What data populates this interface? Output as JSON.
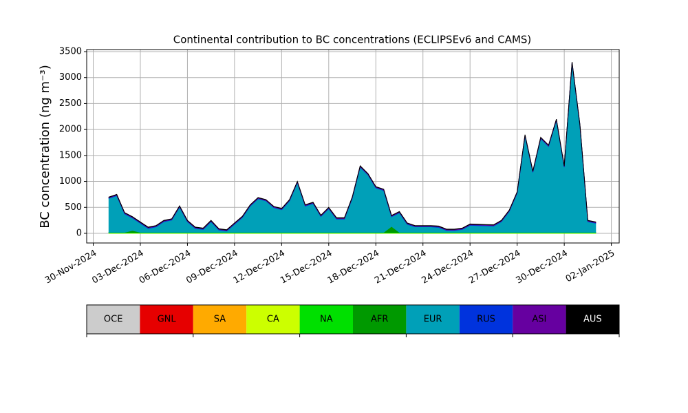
{
  "chart_data": {
    "type": "stacked_area",
    "title": "Continental contribution to BC concentrations (ECLIPSEv6 and CAMS)",
    "y_label": "BC concentration (ng m⁻³)",
    "x": [
      "2024-12-01T00:00",
      "2024-12-01T12:00",
      "2024-12-02T00:00",
      "2024-12-02T12:00",
      "2024-12-03T00:00",
      "2024-12-03T12:00",
      "2024-12-04T00:00",
      "2024-12-04T12:00",
      "2024-12-05T00:00",
      "2024-12-05T12:00",
      "2024-12-06T00:00",
      "2024-12-06T12:00",
      "2024-12-07T00:00",
      "2024-12-07T12:00",
      "2024-12-08T00:00",
      "2024-12-08T12:00",
      "2024-12-09T00:00",
      "2024-12-09T12:00",
      "2024-12-10T00:00",
      "2024-12-10T12:00",
      "2024-12-11T00:00",
      "2024-12-11T12:00",
      "2024-12-12T00:00",
      "2024-12-12T12:00",
      "2024-12-13T00:00",
      "2024-12-13T12:00",
      "2024-12-14T00:00",
      "2024-12-14T12:00",
      "2024-12-15T00:00",
      "2024-12-15T12:00",
      "2024-12-16T00:00",
      "2024-12-16T12:00",
      "2024-12-17T00:00",
      "2024-12-17T12:00",
      "2024-12-18T00:00",
      "2024-12-18T12:00",
      "2024-12-19T00:00",
      "2024-12-19T12:00",
      "2024-12-20T00:00",
      "2024-12-20T12:00",
      "2024-12-21T00:00",
      "2024-12-21T12:00",
      "2024-12-22T00:00",
      "2024-12-22T12:00",
      "2024-12-23T00:00",
      "2024-12-23T12:00",
      "2024-12-24T00:00",
      "2024-12-24T12:00",
      "2024-12-25T00:00",
      "2024-12-25T12:00",
      "2024-12-26T00:00",
      "2024-12-26T12:00",
      "2024-12-27T00:00",
      "2024-12-27T12:00",
      "2024-12-28T00:00",
      "2024-12-28T12:00",
      "2024-12-29T00:00",
      "2024-12-29T12:00",
      "2024-12-30T00:00",
      "2024-12-30T12:00",
      "2024-12-31T00:00",
      "2024-12-31T12:00",
      "2025-01-01T00:00"
    ],
    "series": [
      {
        "name": "OCE",
        "color": "#cccccc",
        "values": [
          0,
          0,
          0,
          0,
          0,
          0,
          0,
          0,
          0,
          0,
          0,
          0,
          0,
          0,
          0,
          0,
          0,
          0,
          0,
          0,
          0,
          0,
          0,
          0,
          0,
          0,
          0,
          0,
          0,
          0,
          0,
          0,
          0,
          0,
          0,
          0,
          0,
          0,
          0,
          0,
          0,
          0,
          0,
          0,
          0,
          0,
          0,
          0,
          0,
          0,
          0,
          0,
          0,
          0,
          0,
          0,
          0,
          0,
          0,
          0,
          0,
          0,
          0
        ]
      },
      {
        "name": "GNL",
        "color": "#e60000",
        "values": [
          0,
          0,
          0,
          0,
          0,
          0,
          0,
          0,
          0,
          0,
          0,
          0,
          0,
          0,
          0,
          0,
          0,
          0,
          0,
          0,
          0,
          0,
          0,
          0,
          0,
          0,
          0,
          0,
          0,
          0,
          0,
          0,
          0,
          0,
          0,
          0,
          0,
          0,
          0,
          0,
          0,
          0,
          0,
          0,
          0,
          0,
          0,
          0,
          0,
          0,
          0,
          0,
          0,
          0,
          0,
          0,
          0,
          0,
          0,
          0,
          0,
          0,
          0
        ]
      },
      {
        "name": "SA",
        "color": "#ffaa00",
        "values": [
          0,
          0,
          0,
          0,
          0,
          0,
          0,
          0,
          0,
          0,
          0,
          0,
          0,
          0,
          0,
          0,
          0,
          0,
          0,
          0,
          0,
          0,
          0,
          0,
          0,
          0,
          0,
          0,
          0,
          0,
          0,
          0,
          0,
          0,
          0,
          0,
          0,
          0,
          0,
          0,
          0,
          0,
          0,
          0,
          0,
          0,
          0,
          0,
          0,
          0,
          0,
          0,
          0,
          0,
          0,
          0,
          0,
          0,
          0,
          0,
          0,
          0,
          0
        ]
      },
      {
        "name": "CA",
        "color": "#ccff00",
        "values": [
          5,
          5,
          5,
          5,
          5,
          5,
          5,
          5,
          5,
          5,
          5,
          5,
          5,
          5,
          5,
          5,
          5,
          5,
          5,
          5,
          5,
          5,
          5,
          5,
          5,
          5,
          5,
          5,
          5,
          5,
          5,
          5,
          5,
          5,
          5,
          5,
          5,
          5,
          5,
          5,
          5,
          5,
          5,
          5,
          5,
          5,
          5,
          5,
          5,
          5,
          5,
          5,
          5,
          5,
          5,
          5,
          5,
          5,
          5,
          5,
          5,
          5,
          5
        ]
      },
      {
        "name": "NA",
        "color": "#00e000",
        "values": [
          10,
          10,
          10,
          10,
          10,
          10,
          10,
          10,
          10,
          10,
          10,
          10,
          10,
          10,
          10,
          10,
          10,
          10,
          10,
          10,
          10,
          10,
          10,
          10,
          10,
          10,
          10,
          10,
          10,
          10,
          10,
          10,
          10,
          10,
          10,
          10,
          10,
          10,
          10,
          10,
          10,
          10,
          10,
          10,
          10,
          10,
          10,
          10,
          10,
          10,
          10,
          10,
          10,
          10,
          10,
          10,
          10,
          10,
          10,
          10,
          10,
          10,
          10
        ]
      },
      {
        "name": "AFR",
        "color": "#009900",
        "values": [
          5,
          5,
          5,
          40,
          5,
          5,
          5,
          5,
          5,
          5,
          5,
          5,
          5,
          5,
          5,
          5,
          5,
          5,
          5,
          5,
          5,
          5,
          5,
          5,
          5,
          5,
          5,
          5,
          5,
          5,
          5,
          5,
          5,
          5,
          5,
          5,
          120,
          5,
          5,
          5,
          5,
          5,
          5,
          5,
          5,
          5,
          5,
          5,
          5,
          5,
          5,
          5,
          5,
          5,
          5,
          5,
          5,
          5,
          5,
          5,
          5,
          5,
          5
        ]
      },
      {
        "name": "EUR",
        "color": "#00a0b8",
        "values": [
          655,
          705,
          355,
          240,
          175,
          75,
          105,
          205,
          235,
          485,
          205,
          75,
          55,
          205,
          45,
          25,
          155,
          285,
          505,
          645,
          605,
          475,
          435,
          605,
          955,
          505,
          555,
          305,
          455,
          255,
          255,
          655,
          1255,
          1105,
          855,
          805,
          185,
          375,
          155,
          105,
          105,
          105,
          95,
          35,
          35,
          55,
          135,
          130,
          125,
          120,
          205,
          405,
          755,
          1855,
          1155,
          1805,
          1655,
          2155,
          1255,
          3255,
          2055,
          205,
          175
        ]
      },
      {
        "name": "RUS",
        "color": "#0033dd",
        "values": [
          10,
          10,
          10,
          10,
          10,
          10,
          10,
          10,
          10,
          10,
          10,
          10,
          10,
          10,
          10,
          10,
          10,
          10,
          10,
          10,
          10,
          10,
          10,
          10,
          10,
          10,
          10,
          10,
          10,
          10,
          10,
          10,
          10,
          10,
          10,
          10,
          10,
          10,
          10,
          10,
          10,
          10,
          10,
          10,
          10,
          10,
          10,
          10,
          10,
          10,
          10,
          10,
          10,
          10,
          10,
          10,
          10,
          10,
          10,
          10,
          10,
          10,
          10
        ]
      },
      {
        "name": "ASI",
        "color": "#6600a0",
        "values": [
          10,
          10,
          10,
          10,
          10,
          10,
          10,
          10,
          10,
          10,
          10,
          10,
          10,
          10,
          10,
          10,
          10,
          10,
          10,
          10,
          10,
          10,
          10,
          10,
          10,
          10,
          10,
          10,
          10,
          10,
          10,
          10,
          10,
          10,
          10,
          10,
          10,
          10,
          10,
          10,
          10,
          10,
          10,
          10,
          10,
          10,
          10,
          10,
          10,
          10,
          10,
          10,
          10,
          10,
          10,
          10,
          10,
          10,
          10,
          10,
          10,
          10,
          10
        ]
      },
      {
        "name": "AUS",
        "color": "#000000",
        "values": [
          5,
          5,
          5,
          5,
          5,
          5,
          5,
          5,
          5,
          5,
          5,
          5,
          5,
          5,
          5,
          5,
          5,
          5,
          5,
          5,
          5,
          5,
          5,
          5,
          5,
          5,
          5,
          5,
          5,
          5,
          5,
          5,
          5,
          5,
          5,
          5,
          5,
          5,
          5,
          5,
          5,
          5,
          5,
          5,
          5,
          5,
          5,
          5,
          5,
          5,
          5,
          5,
          5,
          5,
          5,
          5,
          5,
          5,
          5,
          5,
          5,
          5,
          5
        ]
      }
    ],
    "xlim": [
      "2024-11-29T14:00",
      "2025-01-02T12:00"
    ],
    "xticks": [
      {
        "value": "2024-11-30T00:00",
        "label": "30-Nov-2024"
      },
      {
        "value": "2024-12-03T00:00",
        "label": "03-Dec-2024"
      },
      {
        "value": "2024-12-06T00:00",
        "label": "06-Dec-2024"
      },
      {
        "value": "2024-12-09T00:00",
        "label": "09-Dec-2024"
      },
      {
        "value": "2024-12-12T00:00",
        "label": "12-Dec-2024"
      },
      {
        "value": "2024-12-15T00:00",
        "label": "15-Dec-2024"
      },
      {
        "value": "2024-12-18T00:00",
        "label": "18-Dec-2024"
      },
      {
        "value": "2024-12-21T00:00",
        "label": "21-Dec-2024"
      },
      {
        "value": "2024-12-24T00:00",
        "label": "24-Dec-2024"
      },
      {
        "value": "2024-12-27T00:00",
        "label": "27-Dec-2024"
      },
      {
        "value": "2024-12-30T00:00",
        "label": "30-Dec-2024"
      },
      {
        "value": "2025-01-02T00:00",
        "label": "02-Jan-2025"
      }
    ],
    "ylim": [
      -186,
      3540
    ],
    "yticks": [
      0,
      500,
      1000,
      1500,
      2000,
      2500,
      3000,
      3500
    ],
    "grid": true
  }
}
